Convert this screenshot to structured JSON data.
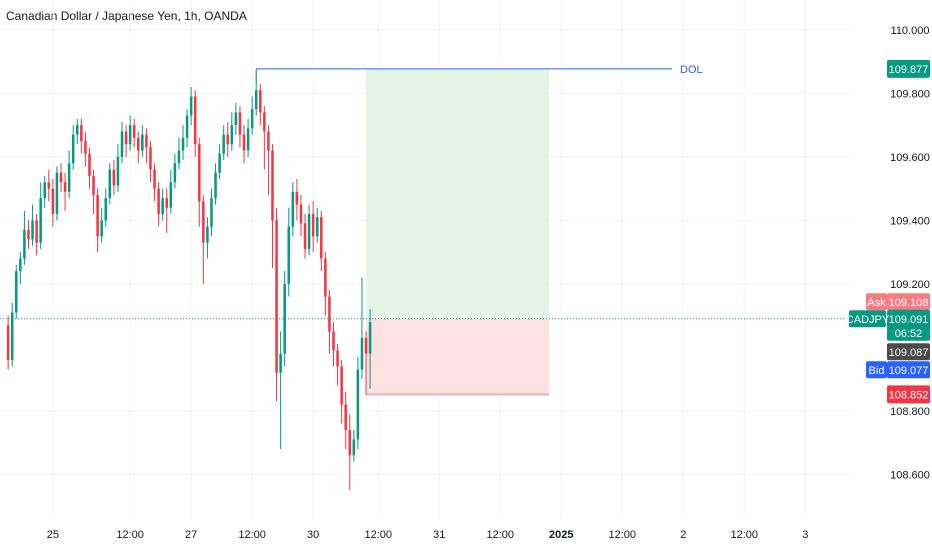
{
  "header": {
    "title": "Canadian Dollar / Japanese Yen, 1h, OANDA"
  },
  "colors": {
    "up": "#089981",
    "down": "#f23645",
    "grid": "#f0f3fa",
    "text": "#131722",
    "target_zone": "#e3f3e5",
    "stop_zone": "#fde1e3",
    "dol_line": "#2962ff",
    "ask_tag": "#f77c80",
    "bid_tag": "#2962ff",
    "last_tag": "#089981",
    "mid_tag": "#4a4a4a",
    "target_tag": "#089981",
    "stop_tag": "#f23645"
  },
  "chart_data": {
    "type": "candlestick",
    "title": "Canadian Dollar / Japanese Yen, 1h, OANDA",
    "symbol": "CADJPY",
    "y_axis": {
      "range": [
        108.55,
        110.05
      ],
      "ticks": [
        "110.000",
        "109.800",
        "109.600",
        "109.400",
        "109.200",
        "108.800",
        "108.600"
      ],
      "tick_values": [
        110.0,
        109.8,
        109.6,
        109.4,
        109.2,
        108.8,
        108.6
      ]
    },
    "x_axis": {
      "labels": [
        "25",
        "12:00",
        "27",
        "12:00",
        "30",
        "12:00",
        "31",
        "12:00",
        "2025",
        "12:00",
        "2",
        "12:00",
        "3"
      ],
      "label_bars": [
        11,
        30,
        45,
        60,
        75,
        91,
        106,
        121,
        136,
        151,
        166,
        181,
        196
      ],
      "bar_range": [
        -2,
        207
      ]
    },
    "candles": [
      [
        109.07,
        108.96,
        109.1,
        108.93
      ],
      [
        108.96,
        109.11,
        109.14,
        108.94
      ],
      [
        109.11,
        109.24,
        109.26,
        109.09
      ],
      [
        109.24,
        109.28,
        109.3,
        109.2
      ],
      [
        109.28,
        109.37,
        109.43,
        109.26
      ],
      [
        109.37,
        109.34,
        109.4,
        109.31
      ],
      [
        109.34,
        109.4,
        109.45,
        109.32
      ],
      [
        109.4,
        109.33,
        109.42,
        109.29
      ],
      [
        109.33,
        109.47,
        109.52,
        109.31
      ],
      [
        109.47,
        109.52,
        109.54,
        109.44
      ],
      [
        109.52,
        109.5,
        109.56,
        109.46
      ],
      [
        109.5,
        109.42,
        109.53,
        109.38
      ],
      [
        109.42,
        109.55,
        109.57,
        109.4
      ],
      [
        109.55,
        109.52,
        109.58,
        109.49
      ],
      [
        109.52,
        109.49,
        109.55,
        109.43
      ],
      [
        109.49,
        109.58,
        109.62,
        109.47
      ],
      [
        109.58,
        109.67,
        109.7,
        109.56
      ],
      [
        109.67,
        109.7,
        109.72,
        109.64
      ],
      [
        109.7,
        109.65,
        109.72,
        109.61
      ],
      [
        109.65,
        109.61,
        109.68,
        109.57
      ],
      [
        109.61,
        109.54,
        109.63,
        109.5
      ],
      [
        109.54,
        109.48,
        109.56,
        109.42
      ],
      [
        109.48,
        109.35,
        109.5,
        109.3
      ],
      [
        109.35,
        109.4,
        109.44,
        109.33
      ],
      [
        109.4,
        109.47,
        109.5,
        109.38
      ],
      [
        109.47,
        109.56,
        109.58,
        109.45
      ],
      [
        109.56,
        109.51,
        109.59,
        109.48
      ],
      [
        109.51,
        109.6,
        109.64,
        109.49
      ],
      [
        109.6,
        109.68,
        109.71,
        109.58
      ],
      [
        109.68,
        109.64,
        109.7,
        109.6
      ],
      [
        109.64,
        109.7,
        109.73,
        109.62
      ],
      [
        109.7,
        109.66,
        109.72,
        109.63
      ],
      [
        109.66,
        109.62,
        109.68,
        109.58
      ],
      [
        109.62,
        109.67,
        109.7,
        109.6
      ],
      [
        109.67,
        109.63,
        109.69,
        109.58
      ],
      [
        109.63,
        109.56,
        109.65,
        109.52
      ],
      [
        109.56,
        109.5,
        109.58,
        109.46
      ],
      [
        109.5,
        109.42,
        109.52,
        109.38
      ],
      [
        109.42,
        109.47,
        109.5,
        109.4
      ],
      [
        109.47,
        109.44,
        109.5,
        109.36
      ],
      [
        109.44,
        109.52,
        109.56,
        109.42
      ],
      [
        109.52,
        109.58,
        109.61,
        109.5
      ],
      [
        109.58,
        109.62,
        109.66,
        109.56
      ],
      [
        109.62,
        109.66,
        109.7,
        109.59
      ],
      [
        109.66,
        109.73,
        109.75,
        109.63
      ],
      [
        109.73,
        109.79,
        109.82,
        109.7
      ],
      [
        109.79,
        109.64,
        109.81,
        109.6
      ],
      [
        109.64,
        109.46,
        109.66,
        109.38
      ],
      [
        109.46,
        109.33,
        109.48,
        109.2
      ],
      [
        109.33,
        109.38,
        109.41,
        109.28
      ],
      [
        109.38,
        109.47,
        109.5,
        109.35
      ],
      [
        109.47,
        109.55,
        109.58,
        109.45
      ],
      [
        109.55,
        109.61,
        109.64,
        109.53
      ],
      [
        109.61,
        109.67,
        109.7,
        109.59
      ],
      [
        109.67,
        109.64,
        109.71,
        109.6
      ],
      [
        109.64,
        109.7,
        109.74,
        109.62
      ],
      [
        109.7,
        109.74,
        109.77,
        109.67
      ],
      [
        109.74,
        109.67,
        109.76,
        109.63
      ],
      [
        109.67,
        109.62,
        109.7,
        109.58
      ],
      [
        109.62,
        109.69,
        109.72,
        109.6
      ],
      [
        109.69,
        109.75,
        109.79,
        109.67
      ],
      [
        109.75,
        109.81,
        109.86,
        109.73
      ],
      [
        109.81,
        109.74,
        109.83,
        109.7
      ],
      [
        109.74,
        109.68,
        109.76,
        109.56
      ],
      [
        109.68,
        109.62,
        109.7,
        109.48
      ],
      [
        109.62,
        109.4,
        109.64,
        109.25
      ],
      [
        109.4,
        108.92,
        109.44,
        108.83
      ],
      [
        108.92,
        108.98,
        109.05,
        108.68
      ],
      [
        108.98,
        109.2,
        109.24,
        108.94
      ],
      [
        109.2,
        109.38,
        109.44,
        109.16
      ],
      [
        109.38,
        109.49,
        109.52,
        109.35
      ],
      [
        109.49,
        109.45,
        109.53,
        109.4
      ],
      [
        109.45,
        109.39,
        109.48,
        109.35
      ],
      [
        109.39,
        109.31,
        109.42,
        109.28
      ],
      [
        109.31,
        109.42,
        109.45,
        109.29
      ],
      [
        109.42,
        109.35,
        109.46,
        109.3
      ],
      [
        109.35,
        109.41,
        109.44,
        109.33
      ],
      [
        109.41,
        109.28,
        109.43,
        109.24
      ],
      [
        109.28,
        109.16,
        109.3,
        109.1
      ],
      [
        109.16,
        109.05,
        109.18,
        108.98
      ],
      [
        109.05,
        108.99,
        109.08,
        108.94
      ],
      [
        108.99,
        108.94,
        109.01,
        108.88
      ],
      [
        108.94,
        108.82,
        108.96,
        108.76
      ],
      [
        108.82,
        108.74,
        108.86,
        108.68
      ],
      [
        108.74,
        108.66,
        108.79,
        108.55
      ],
      [
        108.66,
        108.71,
        108.74,
        108.64
      ],
      [
        108.71,
        108.93,
        108.97,
        108.68
      ],
      [
        108.93,
        109.03,
        109.22,
        108.9
      ],
      [
        109.03,
        108.98,
        109.05,
        108.85
      ],
      [
        108.98,
        109.08,
        109.12,
        108.87
      ]
    ],
    "markers": {
      "dol_label": "DOL",
      "dol_price": 109.877,
      "target_price": "109.877",
      "stop_price": "108.852",
      "entry_price": 109.09,
      "ask_label": "Ask",
      "ask_price": "109.108",
      "last_symbol": "CADJPY",
      "last_price": "109.091",
      "countdown": "06:52",
      "mid_price": "109.087",
      "bid_label": "Bid",
      "bid_price": "109.077"
    }
  }
}
